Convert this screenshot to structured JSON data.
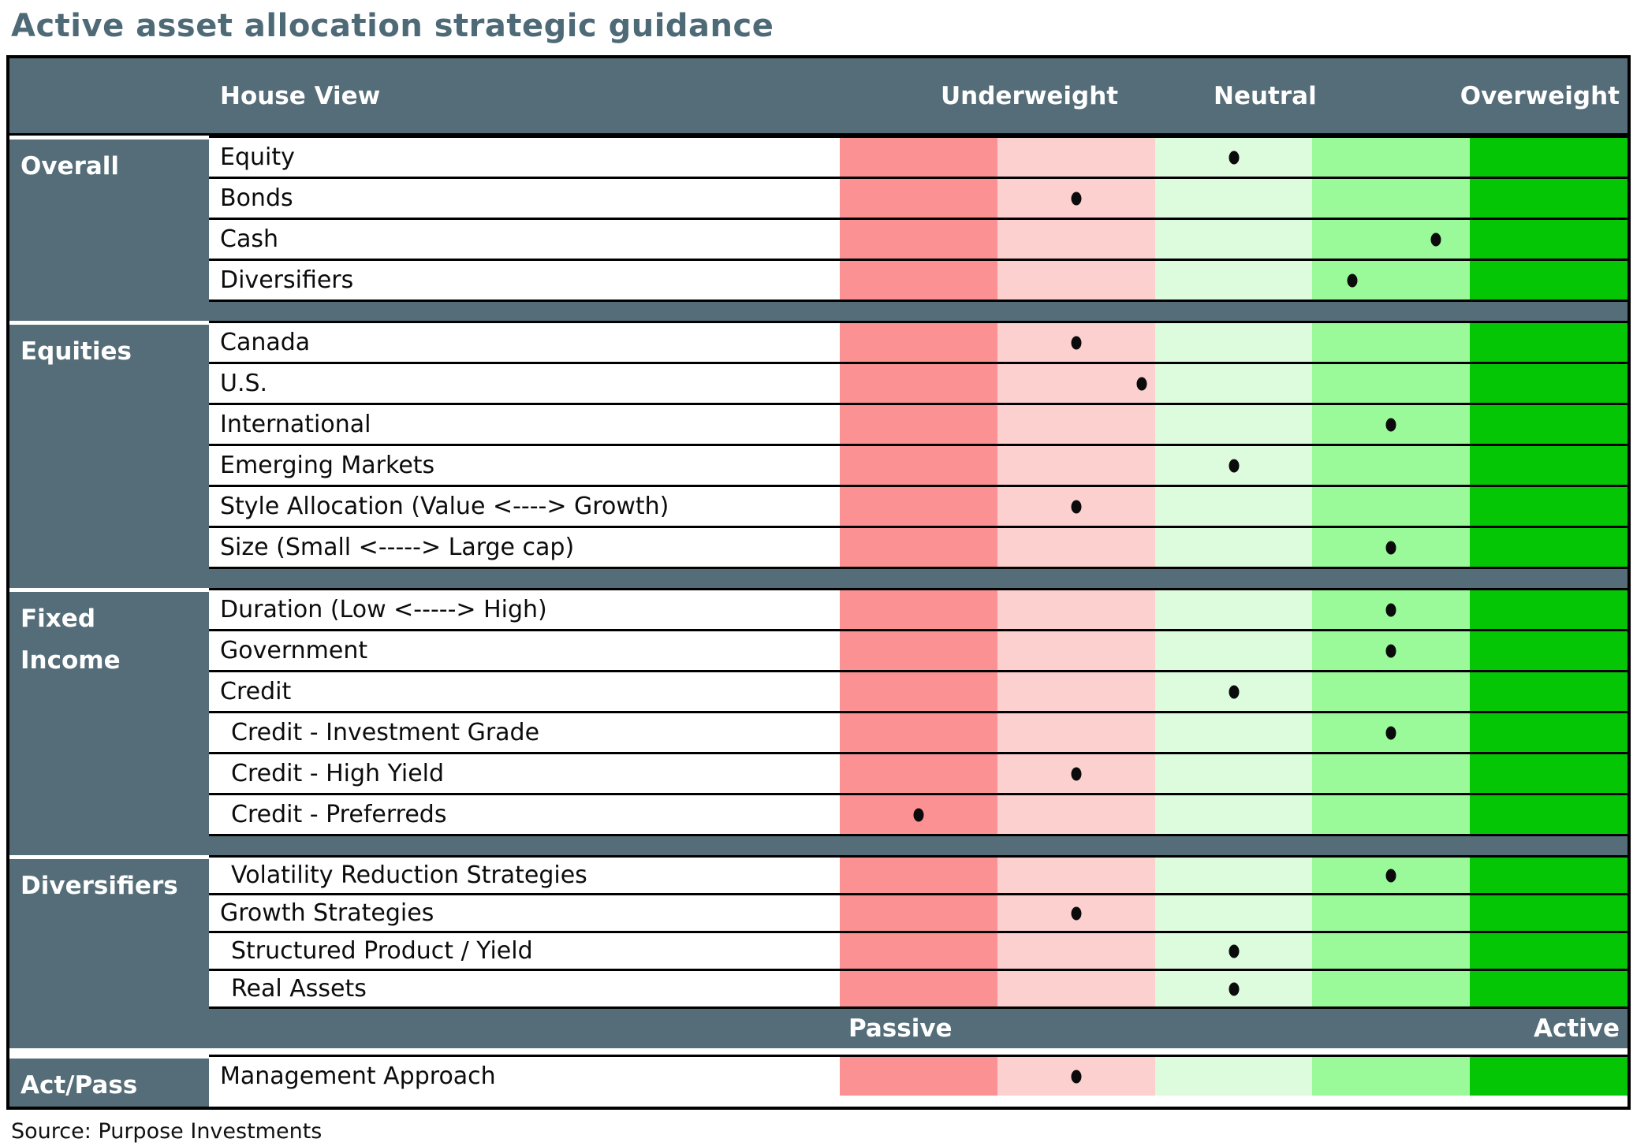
{
  "title": "Active asset allocation strategic guidance",
  "source_note": "Source: Purpose Investments",
  "header": {
    "house_view_label": "House View",
    "underweight_label": "Underweight",
    "neutral_label": "Neutral",
    "overweight_label": "Overweight"
  },
  "scale_footer": {
    "passive_label": "Passive",
    "active_label": "Active"
  },
  "colors": {
    "slate": "#546D78",
    "title_text": "#4E6A77",
    "dot": "#0B0B0B",
    "band_colors": [
      "#FC9193",
      "#FDD0D0",
      "#DDFBDD",
      "#9AFA9A",
      "#05C605"
    ]
  },
  "chart_data": {
    "type": "heatmap",
    "description": "Active asset allocation house views; each row has a black dot placed on a five-band underweight-to-overweight color scale. Position is the dot's horizontal location as a fraction (0 = far underweight edge, 1 = far overweight edge).",
    "scale_bands": [
      "strong-underweight",
      "underweight",
      "neutral",
      "overweight",
      "strong-overweight"
    ],
    "axis_labels": [
      "Underweight",
      "Neutral",
      "Overweight"
    ],
    "groups": [
      {
        "name": "Overall",
        "rows": [
          {
            "label": "Equity",
            "position": 0.5
          },
          {
            "label": "Bonds",
            "position": 0.3
          },
          {
            "label": "Cash",
            "position": 0.757
          },
          {
            "label": "Diversifiers",
            "position": 0.651
          }
        ]
      },
      {
        "name": "Equities",
        "rows": [
          {
            "label": "Canada",
            "position": 0.3
          },
          {
            "label": "U.S.",
            "position": 0.383
          },
          {
            "label": "International",
            "position": 0.7
          },
          {
            "label": "Emerging Markets",
            "position": 0.5
          },
          {
            "label": "Style Allocation (Value <----> Growth)",
            "position": 0.3
          },
          {
            "label": "Size (Small <----->  Large cap)",
            "position": 0.7
          }
        ]
      },
      {
        "name": "Fixed Income",
        "rows": [
          {
            "label": "Duration (Low <-----> High)",
            "position": 0.7
          },
          {
            "label": "Government",
            "position": 0.7
          },
          {
            "label": "Credit",
            "position": 0.5
          },
          {
            "label": "Credit - Investment Grade",
            "position": 0.7,
            "indent": true
          },
          {
            "label": "Credit - High Yield",
            "position": 0.3,
            "indent": true
          },
          {
            "label": "Credit - Preferreds",
            "position": 0.1,
            "indent": true
          }
        ]
      },
      {
        "name": "Diversifiers",
        "rows": [
          {
            "label": "Volatility Reduction Strategies",
            "position": 0.7,
            "indent": true
          },
          {
            "label": "Growth Strategies",
            "position": 0.3
          },
          {
            "label": "Structured Product / Yield",
            "position": 0.5,
            "indent": true
          },
          {
            "label": "Real Assets",
            "position": 0.5,
            "indent": true
          }
        ]
      },
      {
        "name": "Act/Pass",
        "rows": [
          {
            "label": "Management Approach",
            "position": 0.3
          }
        ]
      }
    ]
  }
}
